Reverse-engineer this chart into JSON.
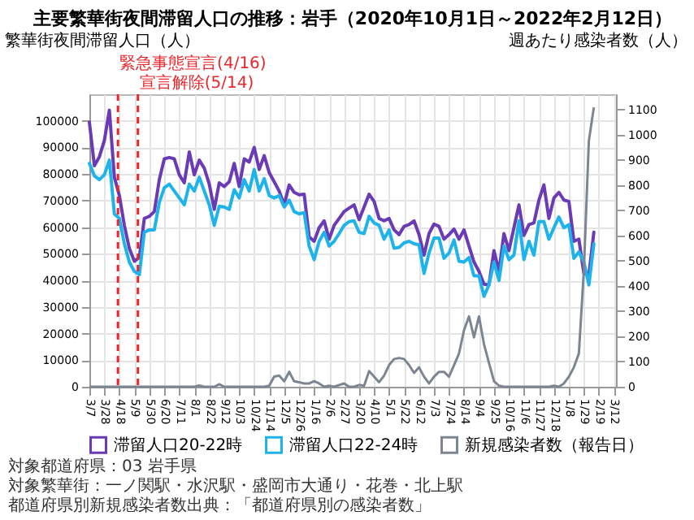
{
  "chart_data": {
    "type": "line",
    "title": "主要繁華街夜間滞留人口の推移：岩手（2020年10月1日～2022年2月12日）",
    "ylabel": "繁華街夜間滞留人口（人）",
    "y2label": "週あたり感染者数（人）",
    "x": [
      "2020-03-07",
      "2020-03-14",
      "2020-03-21",
      "2020-03-28",
      "2020-04-04",
      "2020-04-11",
      "2020-04-18",
      "2020-04-25",
      "2020-05-02",
      "2020-05-09",
      "2020-05-16",
      "2020-05-23",
      "2020-05-30",
      "2020-06-06",
      "2020-06-13",
      "2020-06-20",
      "2020-06-27",
      "2020-07-04",
      "2020-07-11",
      "2020-07-18",
      "2020-07-25",
      "2020-08-01",
      "2020-08-08",
      "2020-08-15",
      "2020-08-22",
      "2020-08-29",
      "2020-09-05",
      "2020-09-12",
      "2020-09-19",
      "2020-09-26",
      "2020-10-03",
      "2020-10-10",
      "2020-10-17",
      "2020-10-24",
      "2020-10-31",
      "2020-11-07",
      "2020-11-14",
      "2020-11-21",
      "2020-11-28",
      "2020-12-05",
      "2020-12-12",
      "2020-12-19",
      "2020-12-26",
      "2021-01-02",
      "2021-01-09",
      "2021-01-16",
      "2021-01-23",
      "2021-01-30",
      "2021-02-06",
      "2021-02-13",
      "2021-02-20",
      "2021-02-27",
      "2021-03-06",
      "2021-03-13",
      "2021-03-20",
      "2021-03-27",
      "2021-04-03",
      "2021-04-10",
      "2021-04-17",
      "2021-04-24",
      "2021-05-01",
      "2021-05-08",
      "2021-05-15",
      "2021-05-22",
      "2021-05-29",
      "2021-06-05",
      "2021-06-12",
      "2021-06-19",
      "2021-06-26",
      "2021-07-03",
      "2021-07-10",
      "2021-07-17",
      "2021-07-24",
      "2021-07-31",
      "2021-08-07",
      "2021-08-14",
      "2021-08-21",
      "2021-08-28",
      "2021-09-04",
      "2021-09-11",
      "2021-09-18",
      "2021-09-25",
      "2021-10-02",
      "2021-10-09",
      "2021-10-16",
      "2021-10-23",
      "2021-10-30",
      "2021-11-06",
      "2021-11-13",
      "2021-11-20",
      "2021-11-27",
      "2021-12-04",
      "2021-12-11",
      "2021-12-18",
      "2021-12-25",
      "2022-01-01",
      "2022-01-08",
      "2022-01-15",
      "2022-01-22",
      "2022-01-29",
      "2022-02-05",
      "2022-02-12"
    ],
    "xlim": [
      "2020-03-07",
      "2022-03-15"
    ],
    "xticks": [
      {
        "value": "2020-03-07",
        "label": "3/7"
      },
      {
        "value": "2020-03-28",
        "label": "3/28"
      },
      {
        "value": "2020-04-18",
        "label": "4/18"
      },
      {
        "value": "2020-05-09",
        "label": "5/9"
      },
      {
        "value": "2020-05-30",
        "label": "5/30"
      },
      {
        "value": "2020-06-20",
        "label": "6/20"
      },
      {
        "value": "2020-07-11",
        "label": "7/11"
      },
      {
        "value": "2020-08-01",
        "label": "8/1"
      },
      {
        "value": "2020-08-22",
        "label": "8/22"
      },
      {
        "value": "2020-09-12",
        "label": "9/12"
      },
      {
        "value": "2020-10-03",
        "label": "10/3"
      },
      {
        "value": "2020-10-24",
        "label": "10/24"
      },
      {
        "value": "2020-11-14",
        "label": "11/14"
      },
      {
        "value": "2020-12-05",
        "label": "12/5"
      },
      {
        "value": "2020-12-26",
        "label": "12/26"
      },
      {
        "value": "2021-01-16",
        "label": "1/16"
      },
      {
        "value": "2021-02-06",
        "label": "2/6"
      },
      {
        "value": "2021-02-27",
        "label": "2/27"
      },
      {
        "value": "2021-03-20",
        "label": "3/20"
      },
      {
        "value": "2021-04-10",
        "label": "4/10"
      },
      {
        "value": "2021-05-01",
        "label": "5/1"
      },
      {
        "value": "2021-05-22",
        "label": "5/22"
      },
      {
        "value": "2021-06-12",
        "label": "6/12"
      },
      {
        "value": "2021-07-03",
        "label": "7/3"
      },
      {
        "value": "2021-07-24",
        "label": "7/24"
      },
      {
        "value": "2021-08-14",
        "label": "8/14"
      },
      {
        "value": "2021-09-04",
        "label": "9/4"
      },
      {
        "value": "2021-09-25",
        "label": "9/25"
      },
      {
        "value": "2021-10-16",
        "label": "10/16"
      },
      {
        "value": "2021-11-06",
        "label": "11/6"
      },
      {
        "value": "2021-11-27",
        "label": "11/27"
      },
      {
        "value": "2021-12-18",
        "label": "12/18"
      },
      {
        "value": "2022-01-08",
        "label": "1/8"
      },
      {
        "value": "2022-01-29",
        "label": "1/29"
      },
      {
        "value": "2022-02-19",
        "label": "2/19"
      },
      {
        "value": "2022-03-12",
        "label": "3/12"
      }
    ],
    "ylim": [
      0,
      110000
    ],
    "yticks": [
      0,
      10000,
      20000,
      30000,
      40000,
      50000,
      60000,
      70000,
      80000,
      90000,
      100000
    ],
    "y2lim": [
      0,
      1160
    ],
    "y2ticks": [
      0,
      100,
      200,
      300,
      400,
      500,
      600,
      700,
      800,
      900,
      1000,
      1100
    ],
    "grid": true,
    "legend": "bottom",
    "series": [
      {
        "name": "滞留人口20-22時",
        "color": "#6a3bb5",
        "values": [
          99500,
          83100,
          86500,
          92600,
          104000,
          78800,
          71900,
          60700,
          52000,
          47200,
          48600,
          63300,
          64100,
          65900,
          77900,
          85700,
          86200,
          85700,
          79700,
          76700,
          88300,
          79700,
          85200,
          82200,
          76200,
          66700,
          76700,
          75300,
          77100,
          84000,
          75300,
          85700,
          84500,
          90000,
          81700,
          86900,
          80500,
          77100,
          73600,
          68400,
          75900,
          73100,
          72200,
          72400,
          56400,
          54700,
          59800,
          62400,
          55500,
          60700,
          63300,
          65900,
          67200,
          68400,
          62800,
          67600,
          72400,
          69700,
          63300,
          62400,
          63300,
          59000,
          57200,
          60300,
          61000,
          62400,
          57200,
          49500,
          57600,
          61200,
          60300,
          55500,
          57200,
          59300,
          55500,
          59000,
          52900,
          46900,
          43400,
          38600,
          38300,
          51200,
          43400,
          57600,
          51200,
          59800,
          68400,
          56900,
          61000,
          61600,
          70200,
          75900,
          63300,
          71000,
          73100,
          70200,
          69700,
          54700,
          55500,
          42600,
          42100,
          58100
        ]
      },
      {
        "name": "滞留人口22-24時",
        "color": "#1eb3ea",
        "values": [
          84000,
          79300,
          77900,
          79700,
          85200,
          65000,
          63300,
          53800,
          46900,
          43400,
          42100,
          58100,
          59000,
          59000,
          69300,
          74800,
          76200,
          73600,
          71000,
          68400,
          76200,
          73600,
          78800,
          73600,
          68400,
          60700,
          67900,
          67600,
          66700,
          74100,
          71000,
          77900,
          73600,
          81700,
          73600,
          78300,
          71900,
          71000,
          71900,
          67600,
          70200,
          65900,
          65000,
          65500,
          52900,
          47800,
          54700,
          58100,
          52900,
          54700,
          57600,
          60700,
          62100,
          62400,
          58100,
          57600,
          64100,
          61600,
          60700,
          55500,
          59000,
          52100,
          52400,
          54100,
          54700,
          53800,
          53400,
          42600,
          50300,
          55900,
          55900,
          48300,
          50300,
          55200,
          47200,
          46900,
          48600,
          41700,
          41700,
          34000,
          38300,
          46900,
          40000,
          52900,
          47800,
          49500,
          62400,
          47800,
          54700,
          49500,
          62100,
          62100,
          55500,
          59800,
          63800,
          59800,
          61000,
          48300,
          50700,
          46900,
          38300,
          53800
        ]
      },
      {
        "name": "新規感染者数（報告日）",
        "color": "#7d8591",
        "axis": "y2",
        "values": [
          0,
          0,
          0,
          0,
          0,
          0,
          0,
          0,
          0,
          0,
          0,
          0,
          0,
          0,
          0,
          0,
          0,
          0,
          0,
          0,
          0,
          0,
          5,
          0,
          0,
          0,
          10,
          0,
          0,
          0,
          0,
          0,
          0,
          0,
          0,
          0,
          4,
          40,
          44,
          22,
          59,
          22,
          18,
          13,
          13,
          22,
          13,
          0,
          4,
          0,
          7,
          13,
          0,
          0,
          7,
          4,
          62,
          40,
          18,
          44,
          86,
          110,
          114,
          110,
          86,
          55,
          77,
          40,
          13,
          40,
          59,
          59,
          40,
          86,
          132,
          224,
          279,
          196,
          279,
          169,
          95,
          22,
          4,
          0,
          0,
          0,
          0,
          0,
          0,
          0,
          0,
          0,
          0,
          4,
          0,
          13,
          40,
          77,
          132,
          462,
          976,
          1108
        ]
      }
    ],
    "ref_lines": [
      {
        "axis": "x",
        "value": "2020-04-16",
        "label": "緊急事態宣言(4/16)",
        "color": "#e8262b",
        "line_style": "dashed"
      },
      {
        "axis": "x",
        "value": "2020-05-14",
        "label": "宣言解除(5/14)",
        "color": "#e8262b",
        "line_style": "dashed"
      }
    ],
    "annotations": [
      "対象都道府県：03 岩手県",
      "対象繁華街：一ノ関駅・水沢駅・盛岡市大通り・花巻・北上駅",
      "都道府県別新規感染者数出典：「都道府県別の感染者数」"
    ]
  }
}
